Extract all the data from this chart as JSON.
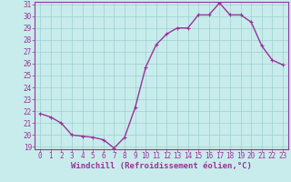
{
  "x": [
    0,
    1,
    2,
    3,
    4,
    5,
    6,
    7,
    8,
    9,
    10,
    11,
    12,
    13,
    14,
    15,
    16,
    17,
    18,
    19,
    20,
    21,
    22,
    23
  ],
  "y": [
    21.8,
    21.5,
    21.0,
    20.0,
    19.9,
    19.8,
    19.6,
    18.9,
    19.8,
    22.3,
    25.7,
    27.6,
    28.5,
    29.0,
    29.0,
    30.1,
    30.1,
    31.1,
    30.1,
    30.1,
    29.5,
    27.5,
    26.3,
    25.9
  ],
  "line_color": "#993399",
  "marker": "P",
  "marker_size": 3,
  "linewidth": 1.0,
  "bg_color": "#c8ecec",
  "grid_color": "#9ecece",
  "xlabel": "Windchill (Refroidissement éolien,°C)",
  "xlabel_color": "#993399",
  "tick_color": "#993399",
  "ylim": [
    19,
    31
  ],
  "xlim": [
    -0.5,
    23.5
  ],
  "yticks": [
    19,
    20,
    21,
    22,
    23,
    24,
    25,
    26,
    27,
    28,
    29,
    30,
    31
  ],
  "xticks": [
    0,
    1,
    2,
    3,
    4,
    5,
    6,
    7,
    8,
    9,
    10,
    11,
    12,
    13,
    14,
    15,
    16,
    17,
    18,
    19,
    20,
    21,
    22,
    23
  ],
  "xlabel_fontsize": 6.5,
  "tick_fontsize": 5.5
}
